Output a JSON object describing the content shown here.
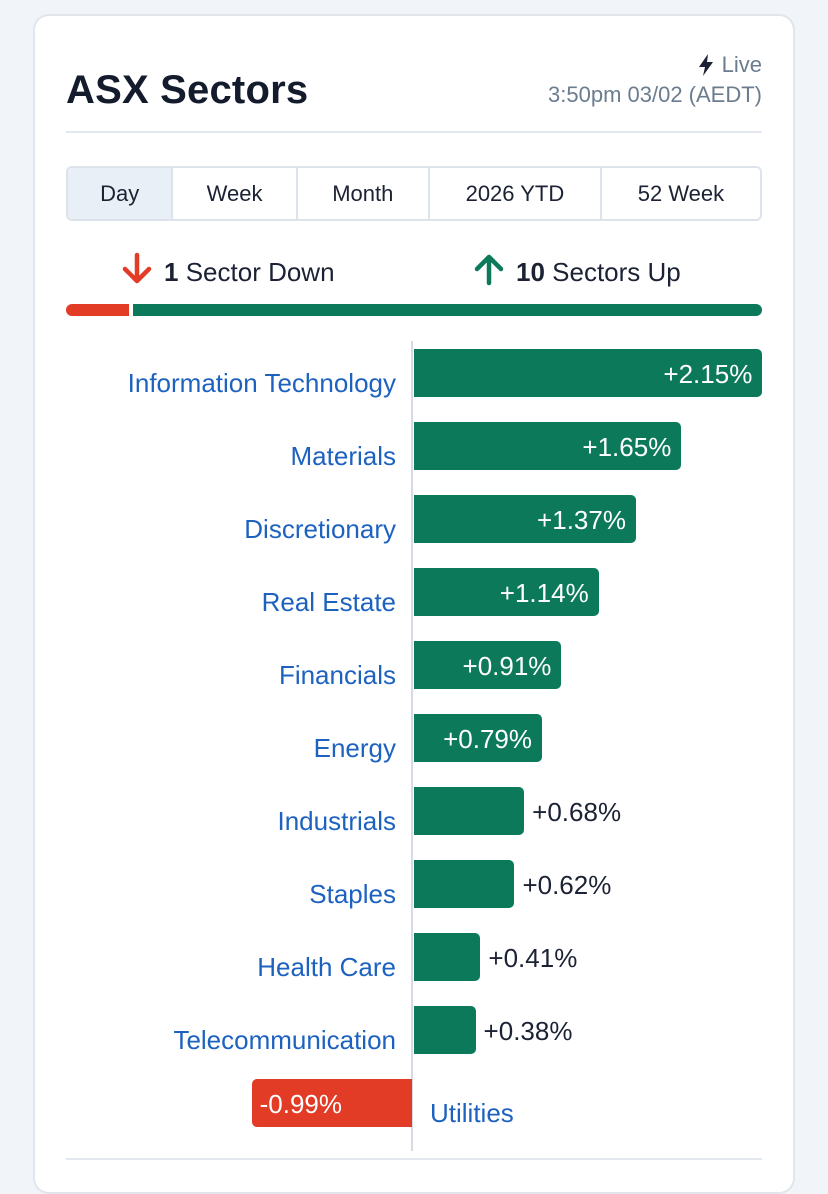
{
  "header": {
    "title": "ASX Sectors",
    "live_label": "Live",
    "live_icon": "bolt-icon",
    "timestamp": "3:50pm 03/02 (AEDT)"
  },
  "tabs": [
    {
      "label": "Day",
      "active": true
    },
    {
      "label": "Week",
      "active": false
    },
    {
      "label": "Month",
      "active": false
    },
    {
      "label": "2026 YTD",
      "active": false
    },
    {
      "label": "52 Week",
      "active": false
    }
  ],
  "summary": {
    "down_count": "1",
    "down_label": "Sector Down",
    "up_count": "10",
    "up_label": "Sectors Up",
    "down_fraction": 0.0909,
    "up_fraction": 0.9091
  },
  "colors": {
    "up": "#0c7a5a",
    "down": "#e23b26",
    "link": "#1e62c0"
  },
  "sectors": [
    {
      "name": "Information Technology",
      "change": 2.15,
      "label": "+2.15%"
    },
    {
      "name": "Materials",
      "change": 1.65,
      "label": "+1.65%"
    },
    {
      "name": "Discretionary",
      "change": 1.37,
      "label": "+1.37%"
    },
    {
      "name": "Real Estate",
      "change": 1.14,
      "label": "+1.14%"
    },
    {
      "name": "Financials",
      "change": 0.91,
      "label": "+0.91%"
    },
    {
      "name": "Energy",
      "change": 0.79,
      "label": "+0.79%"
    },
    {
      "name": "Industrials",
      "change": 0.68,
      "label": "+0.68%"
    },
    {
      "name": "Staples",
      "change": 0.62,
      "label": "+0.62%"
    },
    {
      "name": "Health Care",
      "change": 0.41,
      "label": "+0.41%"
    },
    {
      "name": "Telecommunication",
      "change": 0.38,
      "label": "+0.38%"
    },
    {
      "name": "Utilities",
      "change": -0.99,
      "label": "-0.99%"
    }
  ]
}
